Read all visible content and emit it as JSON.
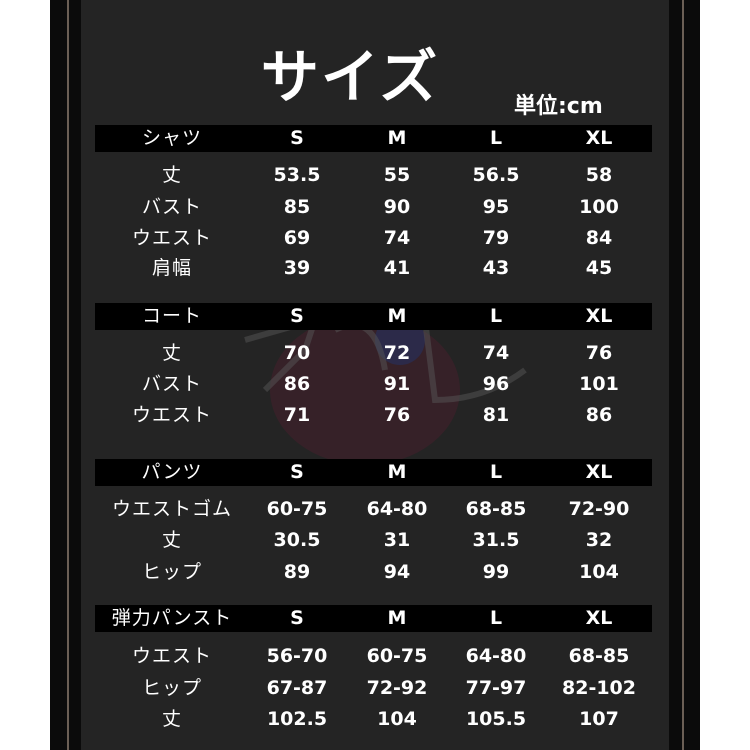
{
  "title": "サイズ",
  "unit": "単位:cm",
  "watermark": "5GGEN.JP",
  "sizes": [
    "S",
    "M",
    "L",
    "XL"
  ],
  "sections": [
    {
      "name": "シャツ",
      "rows": [
        {
          "label": "丈",
          "values": [
            "53.5",
            "55",
            "56.5",
            "58"
          ]
        },
        {
          "label": "バスト",
          "values": [
            "85",
            "90",
            "95",
            "100"
          ]
        },
        {
          "label": "ウエスト",
          "values": [
            "69",
            "74",
            "79",
            "84"
          ]
        },
        {
          "label": "肩幅",
          "values": [
            "39",
            "41",
            "43",
            "45"
          ]
        }
      ]
    },
    {
      "name": "コート",
      "rows": [
        {
          "label": "丈",
          "values": [
            "70",
            "72",
            "74",
            "76"
          ]
        },
        {
          "label": "バスト",
          "values": [
            "86",
            "91",
            "96",
            "101"
          ]
        },
        {
          "label": "ウエスト",
          "values": [
            "71",
            "76",
            "81",
            "86"
          ]
        }
      ]
    },
    {
      "name": "パンツ",
      "rows": [
        {
          "label": "ウエストゴム",
          "values": [
            "60-75",
            "64-80",
            "68-85",
            "72-90"
          ]
        },
        {
          "label": "丈",
          "values": [
            "30.5",
            "31",
            "31.5",
            "32"
          ]
        },
        {
          "label": "ヒップ",
          "values": [
            "89",
            "94",
            "99",
            "104"
          ]
        }
      ]
    },
    {
      "name": "弾力パンスト",
      "rows": [
        {
          "label": "ウエスト",
          "values": [
            "56-70",
            "60-75",
            "64-80",
            "68-85"
          ]
        },
        {
          "label": "ヒップ",
          "values": [
            "67-87",
            "72-92",
            "77-97",
            "82-102"
          ]
        },
        {
          "label": "丈",
          "values": [
            "102.5",
            "104",
            "105.5",
            "107"
          ]
        }
      ]
    }
  ]
}
